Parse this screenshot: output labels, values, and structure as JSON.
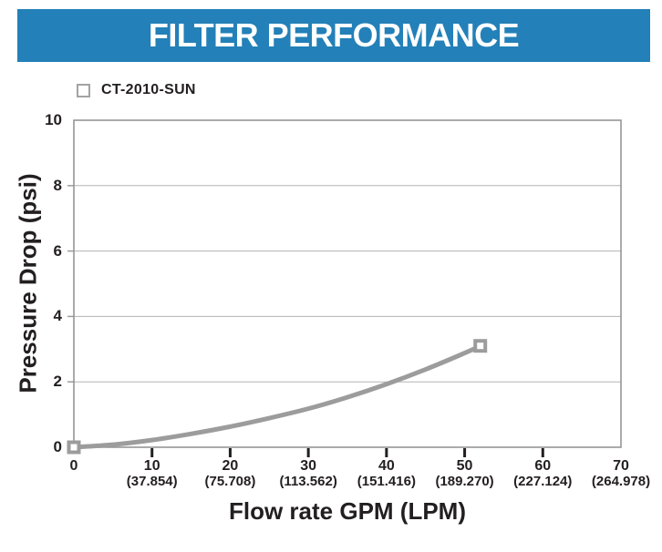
{
  "header": {
    "title": "FILTER PERFORMANCE",
    "bg_color": "#2380b8",
    "text_color": "#ffffff"
  },
  "legend": {
    "label": "CT-2010-SUN",
    "marker": "square-outline-marker",
    "marker_color": "#a3a3a3"
  },
  "chart_data": {
    "type": "line",
    "title": "FILTER PERFORMANCE",
    "xlabel": "Flow rate GPM (LPM)",
    "ylabel": "Pressure Drop (psi)",
    "xlim": [
      0,
      70
    ],
    "ylim": [
      0,
      10
    ],
    "grid": "horizontal-only",
    "legend_position": "top-left",
    "y_ticks": [
      0,
      2,
      4,
      6,
      8,
      10
    ],
    "x_ticks": [
      {
        "value": 0,
        "gpm": "0",
        "lpm": ""
      },
      {
        "value": 10,
        "gpm": "10",
        "lpm": "(37.854)"
      },
      {
        "value": 20,
        "gpm": "20",
        "lpm": "(75.708)"
      },
      {
        "value": 30,
        "gpm": "30",
        "lpm": "(113.562)"
      },
      {
        "value": 40,
        "gpm": "40",
        "lpm": "(151.416)"
      },
      {
        "value": 50,
        "gpm": "50",
        "lpm": "(189.270)"
      },
      {
        "value": 60,
        "gpm": "60",
        "lpm": "(227.124)"
      },
      {
        "value": 70,
        "gpm": "70",
        "lpm": "(264.978)"
      }
    ],
    "series": [
      {
        "name": "CT-2010-SUN",
        "color": "#9c9c9c",
        "points": [
          [
            0,
            0
          ],
          [
            5,
            0.08
          ],
          [
            10,
            0.22
          ],
          [
            15,
            0.41
          ],
          [
            20,
            0.63
          ],
          [
            25,
            0.89
          ],
          [
            30,
            1.18
          ],
          [
            35,
            1.53
          ],
          [
            40,
            1.93
          ],
          [
            45,
            2.38
          ],
          [
            50,
            2.88
          ],
          [
            52,
            3.1
          ]
        ],
        "marker_points": [
          [
            0,
            0
          ],
          [
            52,
            3.1
          ]
        ]
      }
    ],
    "colors": {
      "grid": "#b3b3b3",
      "border": "#8f8f8f",
      "axis_tick": "#231f20",
      "y_nub_tick": "#9c9c9c",
      "marker_fill": "#ffffff"
    }
  }
}
